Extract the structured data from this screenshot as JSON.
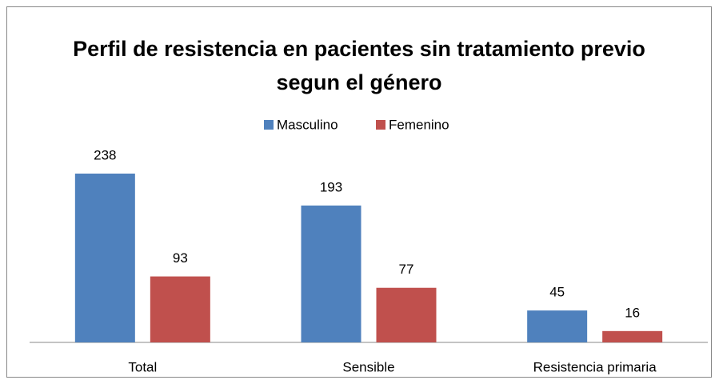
{
  "chart_data": {
    "type": "bar",
    "title": "Perfil de resistencia en pacientes sin tratamiento previo segun el género",
    "categories": [
      "Total",
      "Sensible",
      "Resistencia primaria"
    ],
    "series": [
      {
        "name": "Masculino",
        "color": "#4f81bd",
        "values": [
          238,
          193,
          45
        ]
      },
      {
        "name": "Femenino",
        "color": "#c0504d",
        "values": [
          93,
          77,
          16
        ]
      }
    ],
    "legend": "top"
  }
}
